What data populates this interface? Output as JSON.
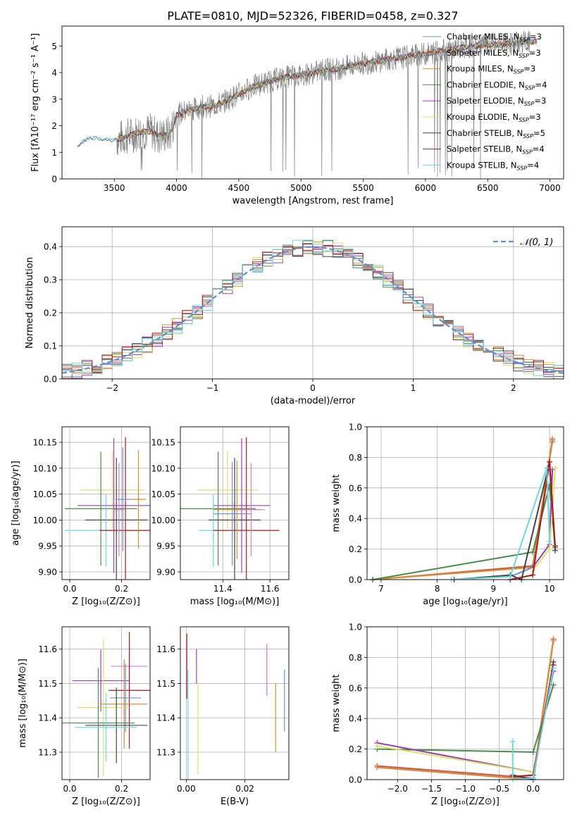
{
  "figure_title": "PLATE=0810, MJD=52326, FIBERID=0458, z=0.327",
  "colors": {
    "chabrier_miles": "#6b8fd6",
    "salpeter_miles": "#c95a4a",
    "kroupa_miles": "#e08a2e",
    "chabrier_elodie": "#4c8a4c",
    "salpeter_elodie": "#9b3fb5",
    "kroupa_elodie": "#d9e36a",
    "chabrier_stelib": "#444444",
    "salpeter_stelib": "#a61c1c",
    "kroupa_stelib": "#6fd6e0",
    "pink": "#e377c2",
    "gaussian": "#5b8fd6",
    "data_grey": "#808080"
  },
  "chart_data": [
    {
      "id": "spectrum",
      "type": "line",
      "title": "PLATE=0810, MJD=52326, FIBERID=0458, z=0.327",
      "xlabel": "wavelength [Angstrom, rest frame]",
      "ylabel": "Flux [fλ10⁻¹⁷ erg cm⁻² s⁻¹ A⁻¹]",
      "xlim": [
        3080,
        7110
      ],
      "ylim": [
        0,
        5.75
      ],
      "xticks": [
        3500,
        4000,
        4500,
        5000,
        5500,
        6000,
        6500,
        7000
      ],
      "yticks": [
        0,
        1,
        2,
        3,
        4,
        5
      ],
      "legend_position": "top-right",
      "legend": [
        {
          "name": "Chabrier MILES, N_SSP=3",
          "main": "Chabrier MILES, N",
          "sub": "SSP",
          "tail": "=3",
          "color_key": "chabrier_miles"
        },
        {
          "name": "Salpeter MILES, N_SSP=3",
          "main": "Salpeter MILES, N",
          "sub": "SSP",
          "tail": "=3",
          "color_key": "salpeter_miles"
        },
        {
          "name": "Kroupa MILES, N_SSP=3",
          "main": "Kroupa MILES, N",
          "sub": "SSP",
          "tail": "=3",
          "color_key": "kroupa_miles"
        },
        {
          "name": "Chabrier ELODIE, N_SSP=4",
          "main": "Chabrier ELODIE, N",
          "sub": "SSP",
          "tail": "=4",
          "color_key": "chabrier_elodie"
        },
        {
          "name": "Salpeter ELODIE, N_SSP=3",
          "main": "Salpeter ELODIE, N",
          "sub": "SSP",
          "tail": "=3",
          "color_key": "salpeter_elodie"
        },
        {
          "name": "Kroupa ELODIE, N_SSP=3",
          "main": "Kroupa ELODIE, N",
          "sub": "SSP",
          "tail": "=3",
          "color_key": "kroupa_elodie"
        },
        {
          "name": "Chabrier STELIB, N_SSP=5",
          "main": "Chabrier STELIB, N",
          "sub": "SSP",
          "tail": "=5",
          "color_key": "chabrier_stelib"
        },
        {
          "name": "Salpeter STELIB, N_SSP=4",
          "main": "Salpeter STELIB, N",
          "sub": "SSP",
          "tail": "=4",
          "color_key": "salpeter_stelib"
        },
        {
          "name": "Kroupa STELIB, N_SSP=4",
          "main": "Kroupa STELIB, N",
          "sub": "SSP",
          "tail": "=4",
          "color_key": "kroupa_stelib"
        }
      ],
      "continuum": [
        [
          3200,
          1.2
        ],
        [
          3260,
          1.45
        ],
        [
          3300,
          1.55
        ],
        [
          3400,
          1.5
        ],
        [
          3500,
          1.45
        ],
        [
          3600,
          1.6
        ],
        [
          3700,
          1.75
        ],
        [
          3800,
          1.8
        ],
        [
          3850,
          1.6
        ],
        [
          3950,
          1.7
        ],
        [
          4000,
          2.4
        ],
        [
          4100,
          2.6
        ],
        [
          4200,
          2.7
        ],
        [
          4300,
          2.75
        ],
        [
          4400,
          2.95
        ],
        [
          4500,
          3.2
        ],
        [
          4600,
          3.45
        ],
        [
          4700,
          3.6
        ],
        [
          4800,
          3.75
        ],
        [
          4900,
          3.85
        ],
        [
          5000,
          3.9
        ],
        [
          5100,
          4.0
        ],
        [
          5200,
          4.1
        ],
        [
          5300,
          4.15
        ],
        [
          5400,
          4.25
        ],
        [
          5500,
          4.35
        ],
        [
          5600,
          4.4
        ],
        [
          5700,
          4.5
        ],
        [
          5800,
          4.55
        ],
        [
          5900,
          4.65
        ],
        [
          6000,
          4.7
        ],
        [
          6100,
          4.8
        ],
        [
          6200,
          4.85
        ],
        [
          6300,
          4.95
        ],
        [
          6400,
          5.0
        ],
        [
          6500,
          5.05
        ],
        [
          6600,
          5.05
        ],
        [
          6700,
          5.1
        ],
        [
          6800,
          5.15
        ]
      ],
      "data_extent": [
        3520,
        6850
      ],
      "noise_amplitude": 0.9
    },
    {
      "id": "residuals",
      "type": "line",
      "xlabel": "(data-model)/error",
      "ylabel": "Normed distribution",
      "xlim": [
        -2.5,
        2.5
      ],
      "ylim": [
        0,
        0.46
      ],
      "xticks": [
        -2,
        -1,
        0,
        1,
        2
      ],
      "yticks": [
        0.0,
        0.1,
        0.2,
        0.3,
        0.4
      ],
      "grid": true,
      "legend_position": "top-right",
      "legend_label": "𝒩(0, 1)",
      "gaussian": {
        "mean": 0,
        "sigma": 1
      },
      "bin_width": 0.1
    },
    {
      "id": "age_vs_Z",
      "type": "scatter",
      "xlabel": "Z [log₁₀(Z/Z⊙)]",
      "ylabel": "age  [log₁₀(age/yr)]",
      "xlim": [
        -0.03,
        0.31
      ],
      "ylim": [
        9.885,
        10.18
      ],
      "xticks": [
        0.0,
        0.2
      ],
      "yticks": [
        9.9,
        9.95,
        10.0,
        10.05,
        10.1,
        10.15
      ],
      "grid": true,
      "points": [
        {
          "x": 0.165,
          "y": 10.058,
          "xerr": 0.125,
          "yerr": 0.075,
          "color_key": "kroupa_elodie"
        },
        {
          "x": 0.17,
          "y": 10.028,
          "xerr": 0.14,
          "yerr": 0.13,
          "color_key": "salpeter_elodie"
        },
        {
          "x": 0.12,
          "y": 10.022,
          "xerr": 0.14,
          "yerr": 0.11,
          "color_key": "chabrier_elodie"
        },
        {
          "x": 0.18,
          "y": 10.0,
          "xerr": 0.12,
          "yerr": 0.12,
          "color_key": "chabrier_stelib"
        },
        {
          "x": 0.14,
          "y": 9.98,
          "xerr": 0.16,
          "yerr": 0.07,
          "color_key": "kroupa_stelib"
        },
        {
          "x": 0.215,
          "y": 9.98,
          "xerr": 0.1,
          "yerr": 0.18,
          "color_key": "salpeter_stelib"
        },
        {
          "x": 0.265,
          "y": 10.04,
          "xerr": 0.03,
          "yerr": 0.095,
          "color_key": "kroupa_miles"
        },
        {
          "x": 0.205,
          "y": 10.04,
          "xerr": 0.03,
          "yerr": 0.1,
          "color_key": "chabrier_miles"
        },
        {
          "x": 0.19,
          "y": 10.02,
          "xerr": 0.02,
          "yerr": 0.09,
          "color_key": "pink"
        }
      ]
    },
    {
      "id": "age_vs_mass",
      "type": "scatter",
      "xlabel": "mass [log₁₀(M/M⊙)]",
      "ylabel": "",
      "xlim": [
        11.22,
        11.68
      ],
      "ylim": [
        9.885,
        10.18
      ],
      "xticks": [
        11.4,
        11.6
      ],
      "yticks": [
        9.9,
        9.95,
        10.0,
        10.05,
        10.1,
        10.15
      ],
      "grid": true,
      "points": [
        {
          "x": 11.42,
          "y": 10.058,
          "xerr": 0.13,
          "yerr": 0.075,
          "color_key": "kroupa_elodie"
        },
        {
          "x": 11.48,
          "y": 10.028,
          "xerr": 0.12,
          "yerr": 0.13,
          "color_key": "salpeter_elodie"
        },
        {
          "x": 11.38,
          "y": 10.022,
          "xerr": 0.16,
          "yerr": 0.11,
          "color_key": "chabrier_elodie"
        },
        {
          "x": 11.45,
          "y": 10.0,
          "xerr": 0.11,
          "yerr": 0.12,
          "color_key": "chabrier_stelib"
        },
        {
          "x": 11.36,
          "y": 9.98,
          "xerr": 0.06,
          "yerr": 0.07,
          "color_key": "kroupa_stelib"
        },
        {
          "x": 11.5,
          "y": 9.98,
          "xerr": 0.14,
          "yerr": 0.18,
          "color_key": "salpeter_stelib"
        },
        {
          "x": 11.46,
          "y": 10.02,
          "xerr": 0.1,
          "yerr": 0.095,
          "color_key": "kroupa_miles"
        },
        {
          "x": 11.44,
          "y": 10.012,
          "xerr": 0.08,
          "yerr": 0.1,
          "color_key": "chabrier_miles"
        },
        {
          "x": 11.52,
          "y": 10.02,
          "xerr": 0.06,
          "yerr": 0.09,
          "color_key": "pink"
        }
      ]
    },
    {
      "id": "massweight_vs_age",
      "type": "line",
      "xlabel": "age  [log₁₀(age/yr)]",
      "ylabel": "mass weight",
      "xlim": [
        6.75,
        10.25
      ],
      "ylim": [
        0,
        1.0
      ],
      "xticks": [
        7,
        8,
        9,
        10
      ],
      "yticks": [
        0.0,
        0.2,
        0.4,
        0.6,
        0.8,
        1.0
      ],
      "grid": true,
      "series": [
        {
          "color_key": "chabrier_miles",
          "x": [
            9.3,
            9.7,
            10.05
          ],
          "y": [
            0.02,
            0.08,
            0.9
          ]
        },
        {
          "color_key": "salpeter_miles",
          "x": [
            6.85,
            9.7,
            10.05
          ],
          "y": [
            0.0,
            0.09,
            0.92
          ]
        },
        {
          "color_key": "kroupa_miles",
          "x": [
            6.85,
            9.7,
            10.05
          ],
          "y": [
            0.0,
            0.08,
            0.91
          ]
        },
        {
          "color_key": "chabrier_elodie",
          "x": [
            6.85,
            9.7,
            10.0,
            10.1
          ],
          "y": [
            0.0,
            0.18,
            0.62,
            0.21
          ]
        },
        {
          "color_key": "salpeter_elodie",
          "x": [
            9.7,
            10.0,
            10.05
          ],
          "y": [
            0.08,
            0.23,
            0.72
          ]
        },
        {
          "color_key": "kroupa_elodie",
          "x": [
            9.7,
            10.0,
            10.1
          ],
          "y": [
            0.06,
            0.2,
            0.73
          ]
        },
        {
          "color_key": "chabrier_stelib",
          "x": [
            8.3,
            9.3,
            9.5,
            10.0,
            10.1
          ],
          "y": [
            0.0,
            0.03,
            0.0,
            0.77,
            0.19
          ]
        },
        {
          "color_key": "salpeter_stelib",
          "x": [
            9.3,
            9.7,
            10.0,
            10.1
          ],
          "y": [
            0.0,
            0.03,
            0.77,
            0.22
          ]
        },
        {
          "color_key": "kroupa_stelib",
          "x": [
            8.25,
            9.3,
            9.95,
            10.0
          ],
          "y": [
            0.0,
            0.02,
            0.73,
            0.25
          ]
        }
      ]
    },
    {
      "id": "mass_vs_Z",
      "type": "scatter",
      "xlabel": "Z [log₁₀(Z/Z⊙)]",
      "ylabel": "mass [log₁₀(M/M⊙)]",
      "xlim": [
        -0.03,
        0.31
      ],
      "ylim": [
        11.22,
        11.665
      ],
      "xticks": [
        0.0,
        0.2
      ],
      "yticks": [
        11.3,
        11.4,
        11.5,
        11.6
      ],
      "grid": true,
      "points": [
        {
          "x": 0.23,
          "y": 11.55,
          "xerr": 0.07,
          "yerr": 0.07,
          "color_key": "pink"
        },
        {
          "x": 0.12,
          "y": 11.508,
          "xerr": 0.11,
          "yerr": 0.09,
          "color_key": "salpeter_elodie"
        },
        {
          "x": 0.23,
          "y": 11.48,
          "xerr": 0.08,
          "yerr": 0.17,
          "color_key": "salpeter_stelib"
        },
        {
          "x": 0.215,
          "y": 11.458,
          "xerr": 0.06,
          "yerr": 0.1,
          "color_key": "chabrier_miles"
        },
        {
          "x": 0.21,
          "y": 11.44,
          "xerr": 0.09,
          "yerr": 0.13,
          "color_key": "kroupa_miles"
        },
        {
          "x": 0.13,
          "y": 11.43,
          "xerr": 0.1,
          "yerr": 0.2,
          "color_key": "kroupa_elodie"
        },
        {
          "x": 0.11,
          "y": 11.385,
          "xerr": 0.14,
          "yerr": 0.16,
          "color_key": "chabrier_elodie"
        },
        {
          "x": 0.18,
          "y": 11.378,
          "xerr": 0.12,
          "yerr": 0.11,
          "color_key": "chabrier_stelib"
        },
        {
          "x": 0.14,
          "y": 11.372,
          "xerr": 0.12,
          "yerr": 0.1,
          "color_key": "kroupa_stelib"
        }
      ]
    },
    {
      "id": "mass_vs_EBV",
      "type": "scatter",
      "xlabel": "E(B-V)",
      "ylabel": "",
      "xlim": [
        -0.002,
        0.035
      ],
      "ylim": [
        11.22,
        11.665
      ],
      "xticks": [
        0.0,
        0.02
      ],
      "yticks": [
        11.3,
        11.4,
        11.5,
        11.6
      ],
      "grid": true,
      "points": [
        {
          "x": 0.0002,
          "y": 11.55,
          "yerr": 0.095,
          "color_key": "salpeter_stelib"
        },
        {
          "x": 0.0006,
          "y": 11.38,
          "yerr": 0.16,
          "color_key": "kroupa_stelib"
        },
        {
          "x": 0.0035,
          "y": 11.55,
          "yerr": 0.05,
          "color_key": "salpeter_elodie"
        },
        {
          "x": 0.004,
          "y": 11.37,
          "yerr": 0.135,
          "color_key": "kroupa_elodie"
        },
        {
          "x": 0.0275,
          "y": 11.54,
          "yerr": 0.075,
          "color_key": "pink"
        },
        {
          "x": 0.0305,
          "y": 11.4,
          "yerr": 0.1,
          "color_key": "kroupa_miles"
        },
        {
          "x": 0.0335,
          "y": 11.45,
          "yerr": 0.09,
          "color_key": "chabrier_miles"
        }
      ]
    },
    {
      "id": "massweight_vs_Z",
      "type": "line",
      "xlabel": "Z [log₁₀(Z/Z⊙)]",
      "ylabel": "mass weight",
      "xlim": [
        -2.45,
        0.45
      ],
      "ylim": [
        0,
        1.0
      ],
      "xticks": [
        -2.0,
        -1.5,
        -1.0,
        -0.5,
        0.0
      ],
      "yticks": [
        0.0,
        0.2,
        0.4,
        0.6,
        0.8,
        1.0
      ],
      "grid": true,
      "series": [
        {
          "color_key": "chabrier_miles",
          "x": [
            -2.3,
            0.0,
            0.3
          ],
          "y": [
            0.08,
            0.0,
            0.91
          ]
        },
        {
          "color_key": "salpeter_miles",
          "x": [
            -2.3,
            0.0,
            0.3
          ],
          "y": [
            0.09,
            0.01,
            0.92
          ]
        },
        {
          "color_key": "kroupa_miles",
          "x": [
            -2.3,
            0.0,
            0.3
          ],
          "y": [
            0.08,
            0.0,
            0.91
          ]
        },
        {
          "color_key": "chabrier_elodie",
          "x": [
            -2.3,
            0.0,
            0.3
          ],
          "y": [
            0.2,
            0.18,
            0.62
          ]
        },
        {
          "color_key": "salpeter_elodie",
          "x": [
            -2.3,
            0.0,
            0.3
          ],
          "y": [
            0.24,
            0.05,
            0.71
          ]
        },
        {
          "color_key": "kroupa_elodie",
          "x": [
            -2.3,
            0.0,
            0.3
          ],
          "y": [
            0.22,
            0.05,
            0.73
          ]
        },
        {
          "color_key": "chabrier_stelib",
          "x": [
            -0.3,
            0.0,
            0.3
          ],
          "y": [
            0.03,
            0.0,
            0.77
          ]
        },
        {
          "color_key": "salpeter_stelib",
          "x": [
            -0.3,
            0.0,
            0.3
          ],
          "y": [
            0.02,
            0.03,
            0.75
          ]
        },
        {
          "color_key": "kroupa_stelib",
          "x": [
            -0.3,
            -0.3,
            0.0,
            0.3
          ],
          "y": [
            0.25,
            0.0,
            0.01,
            0.73
          ]
        }
      ]
    }
  ]
}
